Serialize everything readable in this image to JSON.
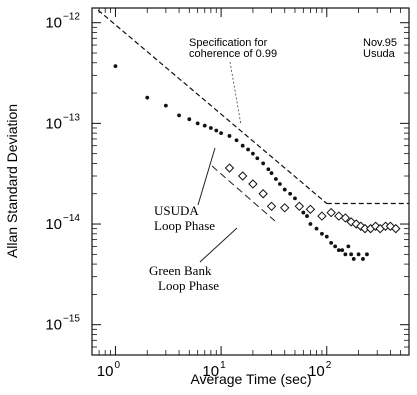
{
  "chart_data": {
    "type": "scatter",
    "title": "",
    "xlabel": "Average Time (sec)",
    "ylabel": "Allan Standard Deviation",
    "xscale": "log",
    "yscale": "log",
    "xlim": [
      0.6,
      600
    ],
    "ylim": [
      5e-16,
      1.4e-12
    ],
    "x_ticks": [
      {
        "value": 1,
        "base": "10",
        "exp": "0"
      },
      {
        "value": 10,
        "base": "10",
        "exp": "1"
      },
      {
        "value": 100,
        "base": "10",
        "exp": "2"
      }
    ],
    "y_ticks": [
      {
        "value": 1e-12,
        "base": "10",
        "exp": "−12"
      },
      {
        "value": 1e-13,
        "base": "10",
        "exp": "−13"
      },
      {
        "value": 1e-14,
        "base": "10",
        "exp": "−14"
      },
      {
        "value": 1e-15,
        "base": "10",
        "exp": "−15"
      }
    ],
    "annotations": {
      "date": "Nov.95",
      "site": "Usuda",
      "spec_line1": "Specification for",
      "spec_line2": "coherence of 0.99",
      "usuda_line1": "USUDA",
      "usuda_line2": "Loop Phase",
      "gb_line1": "Green Bank",
      "gb_line2": "Loop Phase"
    },
    "specification": {
      "sloped": [
        [
          0.6,
          1.5e-12
        ],
        [
          100,
          1.6e-14
        ]
      ],
      "flat": [
        [
          100,
          1.6e-14
        ],
        [
          600,
          1.6e-14
        ]
      ],
      "style": "dashed"
    },
    "series": [
      {
        "name": "USUDA Loop Phase",
        "marker": "dot",
        "x": [
          1,
          2,
          3,
          4,
          5,
          6,
          7,
          8,
          9,
          10,
          12,
          14,
          16,
          18,
          20,
          22,
          25,
          28,
          30,
          33,
          36,
          40,
          45,
          50,
          55,
          60,
          65,
          70,
          80,
          90,
          100,
          110,
          120,
          130,
          140,
          150,
          160,
          170,
          180,
          200,
          220,
          240
        ],
        "y": [
          3.7e-13,
          1.8e-13,
          1.5e-13,
          1.2e-13,
          1.1e-13,
          1e-13,
          9.5e-14,
          9e-14,
          8.5e-14,
          8e-14,
          7.5e-14,
          6.8e-14,
          6e-14,
          5.5e-14,
          5e-14,
          4.5e-14,
          4e-14,
          3.5e-14,
          3.2e-14,
          2.8e-14,
          2.5e-14,
          2.2e-14,
          2e-14,
          1.8e-14,
          1.5e-14,
          1.3e-14,
          1.2e-14,
          1e-14,
          9e-15,
          8e-15,
          7.5e-15,
          6.5e-15,
          6e-15,
          5.5e-15,
          5.5e-15,
          5e-15,
          6e-15,
          5e-15,
          4.5e-15,
          5e-15,
          4.5e-15,
          5e-15
        ]
      },
      {
        "name": "Green Bank Loop Phase",
        "marker": "diamond",
        "x": [
          12,
          16,
          20,
          25,
          30,
          40,
          55,
          70,
          90,
          110,
          130,
          150,
          170,
          190,
          210,
          230,
          260,
          290,
          320,
          360,
          400,
          450
        ],
        "y": [
          3.6e-14,
          3e-14,
          2.5e-14,
          2e-14,
          1.5e-14,
          1.45e-14,
          1.5e-14,
          1.4e-14,
          1.2e-14,
          1.3e-14,
          1.2e-14,
          1.15e-14,
          1.05e-14,
          1e-14,
          9.5e-15,
          9e-15,
          9e-15,
          9.5e-15,
          9e-15,
          9.5e-15,
          9.5e-15,
          9e-15
        ]
      }
    ]
  }
}
